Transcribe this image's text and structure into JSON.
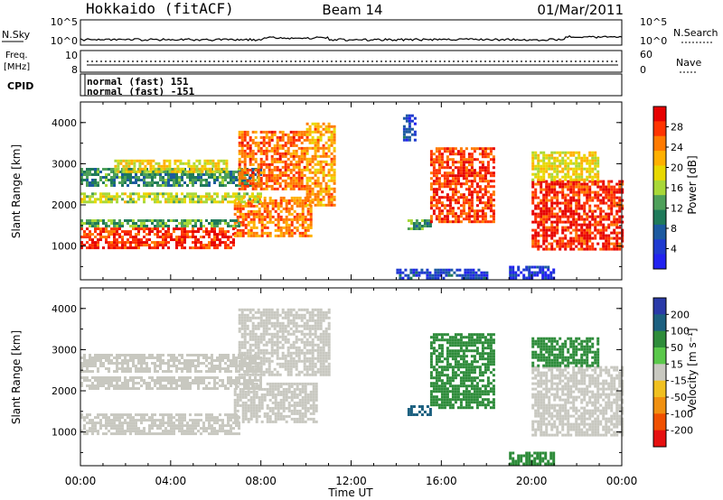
{
  "header": {
    "station": "Hokkaido (fitACF)",
    "beam": "Beam 14",
    "date": "01/Mar/2011"
  },
  "noise_panel": {
    "left_label": "N.Sky",
    "right_label": "N.Search",
    "y_ticks": [
      "10^5",
      "10^0"
    ],
    "y_ticks_right": [
      "10^5",
      "10^0"
    ]
  },
  "freq_panel": {
    "label_line1": "Freq.",
    "label_line2": "[MHz]",
    "right_label": "Nave",
    "y_ticks_left": [
      "10",
      "8"
    ],
    "y_ticks_right": [
      "60",
      "0"
    ]
  },
  "cpid_panel": {
    "label": "CPID",
    "lines": [
      "normal (fast) 151",
      "normal (fast) -151"
    ]
  },
  "axes": {
    "x_ticks": [
      "00:00",
      "04:00",
      "08:00",
      "12:00",
      "16:00",
      "20:00",
      "00:00"
    ],
    "x_label": "Time UT",
    "y_label": "Slant Range [km]",
    "y_ticks": [
      "1000",
      "2000",
      "3000",
      "4000"
    ]
  },
  "power_colorbar": {
    "title": "Power [dB]",
    "ticks": [
      "28",
      "24",
      "20",
      "16",
      "12",
      "8",
      "4"
    ],
    "colors": [
      "#e60000",
      "#ff3300",
      "#ff7a00",
      "#ffb000",
      "#e8d800",
      "#a8d838",
      "#4ea05a",
      "#1f7a5a",
      "#1c5aa0",
      "#1f3ad0",
      "#2222f0"
    ]
  },
  "velocity_colorbar": {
    "title": "Velocity [m s⁻¹]",
    "ticks": [
      "200",
      "100",
      "50",
      "15",
      "-15",
      "-50",
      "-100",
      "-200"
    ],
    "colors": [
      "#2a3aa8",
      "#1c6080",
      "#2e8c3a",
      "#5ac84a",
      "#c8c8c0",
      "#f0c020",
      "#f09010",
      "#f05000",
      "#e61010"
    ]
  },
  "chart_data": {
    "type": "heatmap",
    "x_range_hours": [
      0,
      24
    ],
    "y_range_km": [
      180,
      4500
    ],
    "panels": [
      {
        "name": "Power",
        "regions": [
          {
            "t0": 0.0,
            "t1": 6.8,
            "r0": 950,
            "r1": 1450,
            "value": 30
          },
          {
            "t0": 6.8,
            "t1": 10.2,
            "r0": 1250,
            "r1": 2200,
            "value": 26
          },
          {
            "t0": 0.0,
            "t1": 7.0,
            "r0": 1500,
            "r1": 1650,
            "value": 14
          },
          {
            "t0": 0.0,
            "t1": 8.0,
            "r0": 2050,
            "r1": 2300,
            "value": 18
          },
          {
            "t0": 0.0,
            "t1": 8.0,
            "r0": 2450,
            "r1": 2900,
            "value": 12
          },
          {
            "t0": 1.5,
            "t1": 6.5,
            "r0": 2800,
            "r1": 3100,
            "value": 20
          },
          {
            "t0": 7.0,
            "t1": 10.0,
            "r0": 2400,
            "r1": 3800,
            "value": 27
          },
          {
            "t0": 10.0,
            "t1": 11.3,
            "r0": 2000,
            "r1": 4000,
            "value": 24
          },
          {
            "t0": 14.5,
            "t1": 15.5,
            "r0": 1450,
            "r1": 1650,
            "value": 13
          },
          {
            "t0": 15.5,
            "t1": 18.3,
            "r0": 1600,
            "r1": 3400,
            "value": 29
          },
          {
            "t0": 14.3,
            "t1": 14.8,
            "r0": 3600,
            "r1": 4200,
            "value": 6
          },
          {
            "t0": 20.0,
            "t1": 24.0,
            "r0": 900,
            "r1": 2600,
            "value": 30
          },
          {
            "t0": 20.0,
            "t1": 23.0,
            "r0": 2600,
            "r1": 3300,
            "value": 20
          },
          {
            "t0": 14.0,
            "t1": 18.0,
            "r0": 200,
            "r1": 450,
            "value": 6
          },
          {
            "t0": 19.0,
            "t1": 21.0,
            "r0": 220,
            "r1": 520,
            "value": 4
          }
        ]
      },
      {
        "name": "Velocity",
        "regions": [
          {
            "t0": 0.0,
            "t1": 7.0,
            "r0": 950,
            "r1": 1450,
            "value": 0
          },
          {
            "t0": 6.8,
            "t1": 10.5,
            "r0": 1250,
            "r1": 2200,
            "value": 0
          },
          {
            "t0": 0.0,
            "t1": 8.0,
            "r0": 2050,
            "r1": 2350,
            "value": 0
          },
          {
            "t0": 0.0,
            "t1": 8.0,
            "r0": 2450,
            "r1": 2900,
            "value": 0
          },
          {
            "t0": 7.0,
            "t1": 11.0,
            "r0": 2400,
            "r1": 4000,
            "value": 0
          },
          {
            "t0": 14.5,
            "t1": 15.5,
            "r0": 1450,
            "r1": 1650,
            "value": 120
          },
          {
            "t0": 15.5,
            "t1": 18.3,
            "r0": 1600,
            "r1": 3400,
            "value": 40
          },
          {
            "t0": 20.0,
            "t1": 24.0,
            "r0": 900,
            "r1": 2600,
            "value": 0
          },
          {
            "t0": 20.0,
            "t1": 23.0,
            "r0": 2600,
            "r1": 3300,
            "value": 40
          },
          {
            "t0": 19.0,
            "t1": 21.0,
            "r0": 220,
            "r1": 520,
            "value": 60
          }
        ]
      }
    ]
  }
}
